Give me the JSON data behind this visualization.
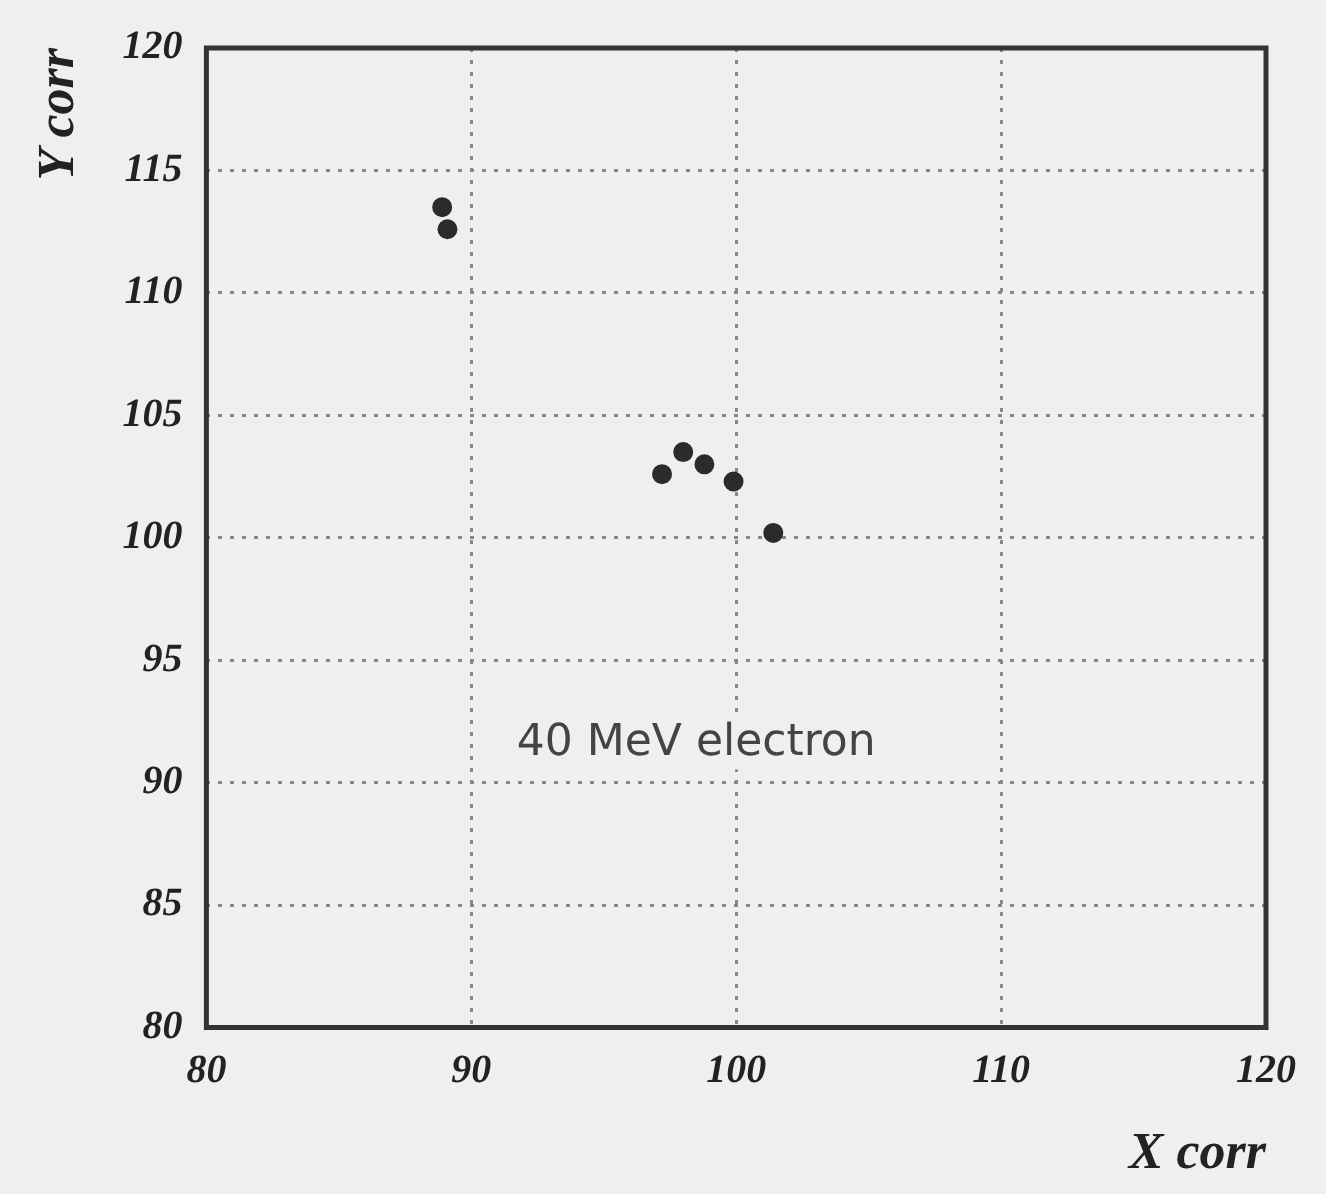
{
  "chart_data": {
    "type": "scatter",
    "xlabel": "X corr",
    "ylabel": "Y corr",
    "x": [
      88.9,
      89.1,
      97.2,
      98.0,
      98.8,
      99.9,
      101.4
    ],
    "values": [
      113.5,
      112.6,
      102.6,
      103.5,
      103.0,
      102.3,
      100.2
    ],
    "color": "#2b2b2b",
    "marker": "circle",
    "xlim": [
      80,
      120
    ],
    "xticks": [
      80,
      90,
      100,
      110,
      120
    ],
    "ylim": [
      80,
      120
    ],
    "yticks": [
      80,
      85,
      90,
      95,
      100,
      105,
      110,
      115,
      120
    ],
    "grid": true,
    "legend": false,
    "annotations": [
      "40 MeV electron"
    ]
  }
}
